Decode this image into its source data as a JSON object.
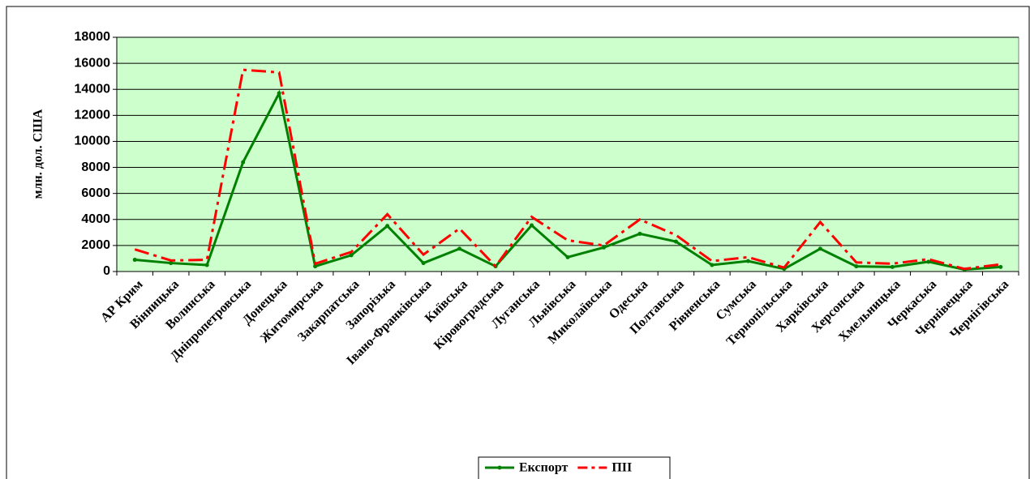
{
  "chart_data": {
    "type": "line",
    "ylabel": "млн. дол. США",
    "categories": [
      "АР Крим",
      "Вінницька",
      "Волинська",
      "Дніпропетровська",
      "Донецька",
      "Житомирська",
      "Закарпатська",
      "Запорізька",
      "Івано-Франківська",
      "Київська",
      "Кіровоградська",
      "Луганська",
      "Львівська",
      "Миколаївська",
      "Одеська",
      "Полтавська",
      "Рівненська",
      "Сумська",
      "Тернопільська",
      "Харківська",
      "Херсонська",
      "Хмельницька",
      "Черкаська",
      "Чернівецька",
      "Чернігівська"
    ],
    "series": [
      {
        "name": "Експорт",
        "color": "#008000",
        "dash": false,
        "values": [
          900,
          650,
          500,
          8400,
          13700,
          400,
          1250,
          3500,
          650,
          1750,
          400,
          3550,
          1100,
          1850,
          2900,
          2300,
          500,
          800,
          200,
          1750,
          400,
          350,
          750,
          150,
          350
        ]
      },
      {
        "name": "ПІІ",
        "color": "#ff0000",
        "dash": true,
        "values": [
          1700,
          850,
          900,
          15500,
          15300,
          600,
          1500,
          4400,
          1300,
          3300,
          400,
          4200,
          2400,
          2000,
          4000,
          2800,
          800,
          1100,
          300,
          3800,
          700,
          600,
          950,
          200,
          550
        ]
      }
    ],
    "ylim": [
      0,
      18000
    ],
    "yticks": [
      0,
      2000,
      4000,
      6000,
      8000,
      10000,
      12000,
      14000,
      16000,
      18000
    ],
    "grid": true,
    "legend": "bottom",
    "plot_background": "#ccffcc"
  }
}
